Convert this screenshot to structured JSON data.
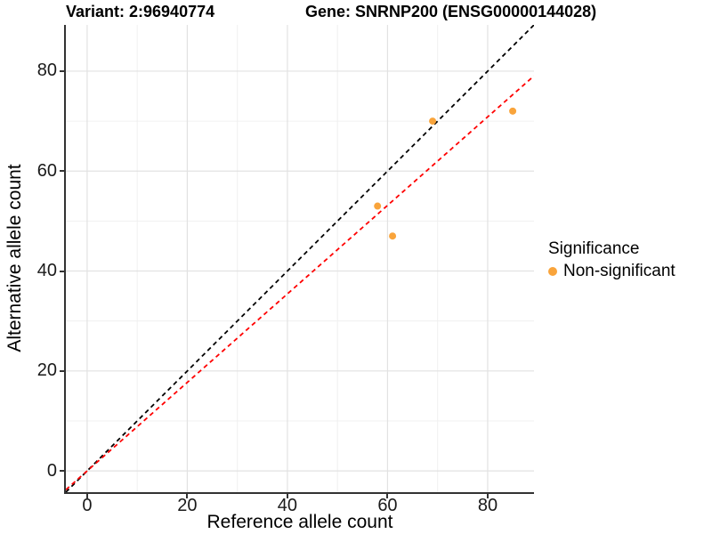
{
  "titles": {
    "variant": "Variant: 2:96940774",
    "gene": "Gene: SNRNP200 (ENSG00000144028)"
  },
  "legend": {
    "title": "Significance",
    "entries": [
      {
        "label": "Non-significant",
        "color": "#F9A43B"
      }
    ]
  },
  "chart_data": {
    "type": "scatter",
    "title_left": "Variant: 2:96940774",
    "title_right": "Gene: SNRNP200 (ENSG00000144028)",
    "xlabel": "Reference allele count",
    "ylabel": "Alternative allele count",
    "xlim": [
      -4.25,
      89.25
    ],
    "ylim": [
      -4.25,
      89.25
    ],
    "x_ticks": [
      0,
      20,
      40,
      60,
      80
    ],
    "y_ticks": [
      0,
      20,
      40,
      60,
      80
    ],
    "grid": {
      "major": [
        0,
        20,
        40,
        60,
        80
      ],
      "minor": [
        10,
        30,
        50,
        70
      ],
      "major_color": "#E2E2E2",
      "minor_color": "#F0F0F0"
    },
    "series": [
      {
        "name": "Non-significant",
        "color": "#F9A43B",
        "points": [
          {
            "x": 58,
            "y": 53
          },
          {
            "x": 61,
            "y": 47
          },
          {
            "x": 69,
            "y": 70
          },
          {
            "x": 85,
            "y": 72
          }
        ]
      }
    ],
    "lines": [
      {
        "name": "identity",
        "slope": 1.0,
        "intercept": 0,
        "color": "#000000",
        "style": "dashed"
      },
      {
        "name": "fit",
        "slope": 0.8857,
        "intercept": 0,
        "color": "#FF0000",
        "style": "dashed"
      }
    ],
    "legend_title": "Significance",
    "legend_position": "right",
    "axis_line_color": "#333333",
    "point_radius": 4
  }
}
